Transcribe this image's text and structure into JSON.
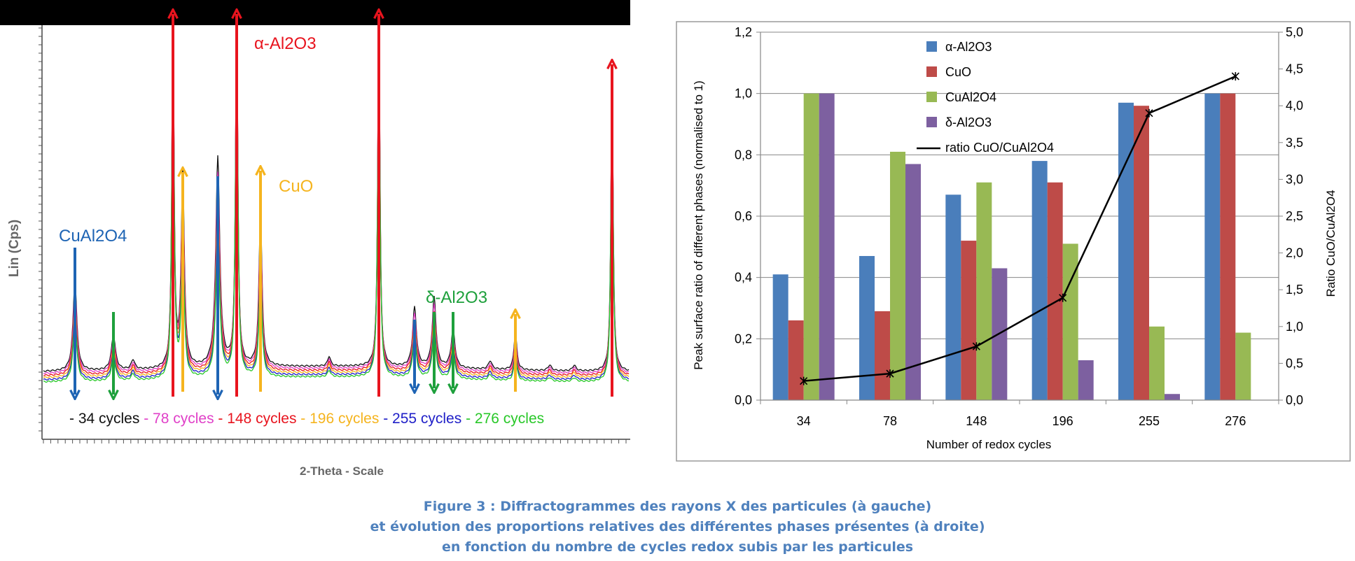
{
  "colors": {
    "blue": "#4a7ebb",
    "red": "#be4b48",
    "green": "#98b954",
    "purple": "#7d60a0",
    "caption": "#4f81bd",
    "arrow_red": "#e8141e",
    "arrow_orange": "#f5b41e",
    "arrow_blue": "#1e64b4",
    "arrow_green": "#1ea03c",
    "xrd_black": "#111111",
    "xrd_magenta": "#e040c8",
    "xrd_red": "#e8141e",
    "xrd_orange": "#f5b41e",
    "xrd_navy": "#2020c8",
    "xrd_green": "#28c828"
  },
  "xrd": {
    "ylabel": "Lin (Cps)",
    "xlabel": "2-Theta - Scale",
    "annotations": {
      "alpha": "α-Al2O3",
      "cuo": "CuO",
      "cual2o4": "CuAl2O4",
      "delta": "δ-Al2O3"
    },
    "cycles_legend": [
      {
        "text": "- 34 cycles",
        "color": "#111111"
      },
      {
        "text": " - 78 cycles",
        "color": "#e040c8"
      },
      {
        "text": " - 148 cycles",
        "color": "#e8141e"
      },
      {
        "text": " - 196 cycles",
        "color": "#f5b41e"
      },
      {
        "text": " - 255 cycles",
        "color": "#2020c8"
      },
      {
        "text": " - 276 cycles",
        "color": "#28c828"
      }
    ]
  },
  "chart_data": [
    {
      "type": "bar",
      "categories": [
        "34",
        "78",
        "148",
        "196",
        "255",
        "276"
      ],
      "xlabel": "Number of redox cycles",
      "ylabel": "Peak surface ratio of different phases (normalised to 1)",
      "y2label": "Ratio CuO/CuAl2O4",
      "ylim": [
        0,
        1.2
      ],
      "y2lim": [
        0,
        5
      ],
      "yticks": [
        "0,0",
        "0,2",
        "0,4",
        "0,6",
        "0,8",
        "1,0",
        "1,2"
      ],
      "y2ticks": [
        "0,0",
        "0,5",
        "1,0",
        "1,5",
        "2,0",
        "2,5",
        "3,0",
        "3,5",
        "4,0",
        "4,5",
        "5,0"
      ],
      "grid": true,
      "legend_position": "top-left",
      "series": [
        {
          "name": "α-Al2O3",
          "type": "bar",
          "values": [
            0.41,
            0.47,
            0.67,
            0.78,
            0.97,
            1.0
          ]
        },
        {
          "name": "CuO",
          "type": "bar",
          "values": [
            0.26,
            0.29,
            0.52,
            0.71,
            0.96,
            1.0
          ]
        },
        {
          "name": "CuAl2O4",
          "type": "bar",
          "values": [
            1.0,
            0.81,
            0.71,
            0.51,
            0.24,
            0.22
          ]
        },
        {
          "name": "δ-Al2O3",
          "type": "bar",
          "values": [
            1.0,
            0.77,
            0.43,
            0.13,
            0.02,
            0
          ]
        },
        {
          "name": "ratio CuO/CuAl2O4",
          "type": "line",
          "axis": "right",
          "values": [
            0.26,
            0.36,
            0.73,
            1.39,
            3.9,
            4.4
          ]
        }
      ]
    }
  ],
  "caption": {
    "line1": "Figure 3 : Diffractogrammes des rayons X des particules (à gauche)",
    "line2": "et évolution des proportions relatives des différentes phases présentes (à droite)",
    "line3": "en fonction du nombre de cycles redox subis par les particules"
  }
}
